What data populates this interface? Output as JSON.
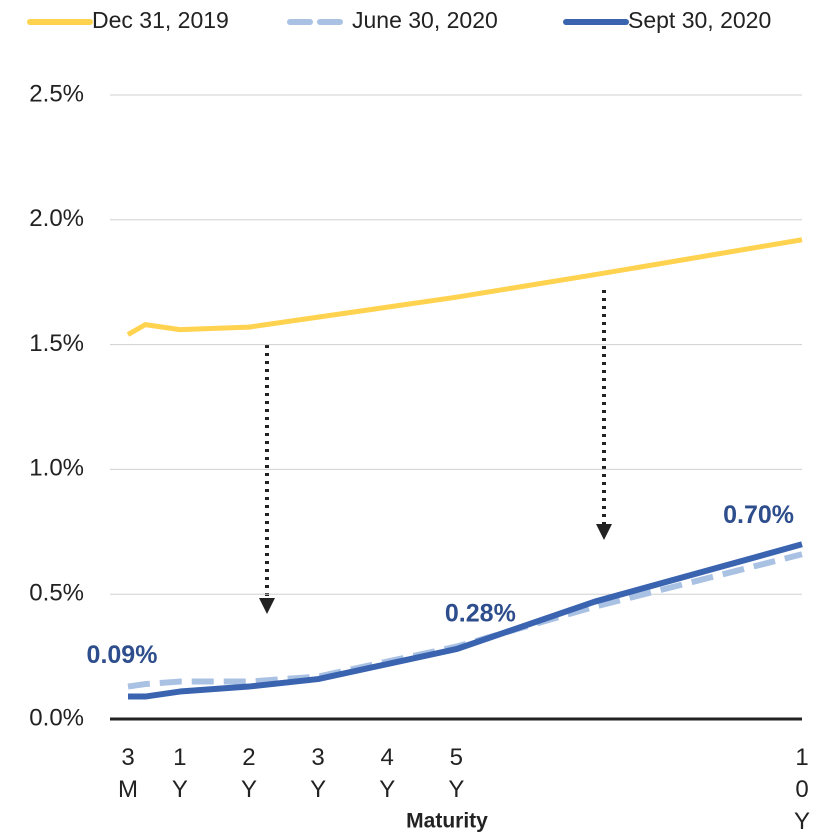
{
  "chart_data": {
    "type": "line",
    "x_label": "Maturity",
    "x": [
      0.25,
      0.5,
      1,
      2,
      3,
      5,
      7,
      10
    ],
    "series": [
      {
        "name": "Dec 31, 2019",
        "color": "#ffd24f",
        "dash": "solid",
        "values": [
          1.54,
          1.58,
          1.56,
          1.57,
          1.61,
          1.69,
          1.78,
          1.92
        ]
      },
      {
        "name": "June 30, 2020",
        "color": "#a9c1e3",
        "dash": "dashed",
        "values": [
          0.13,
          0.14,
          0.15,
          0.15,
          0.17,
          0.29,
          0.45,
          0.66
        ]
      },
      {
        "name": "Sept 30, 2020",
        "color": "#3a63b0",
        "dash": "solid",
        "values": [
          0.09,
          0.09,
          0.11,
          0.13,
          0.16,
          0.28,
          0.47,
          0.7
        ],
        "value_labels": [
          "0.09%",
          null,
          null,
          null,
          null,
          "0.28%",
          null,
          "0.70%"
        ]
      }
    ],
    "xlim": [
      0.25,
      10
    ],
    "xticks": [
      {
        "value": 0.25,
        "label": "3 M"
      },
      {
        "value": 1,
        "label": "1 Y"
      },
      {
        "value": 2,
        "label": "2 Y"
      },
      {
        "value": 3,
        "label": "3 Y"
      },
      {
        "value": 4,
        "label": "4 Y"
      },
      {
        "value": 5,
        "label": "5 Y"
      },
      {
        "value": 10,
        "label": "10 Y"
      }
    ],
    "ylim": [
      0,
      2.5
    ],
    "yticks": [
      {
        "value": 0,
        "label": "0.0%"
      },
      {
        "value": 0.5,
        "label": "0.5%"
      },
      {
        "value": 1,
        "label": "1.0%"
      },
      {
        "value": 1.5,
        "label": "1.5%"
      },
      {
        "value": 2,
        "label": "2.0%"
      },
      {
        "value": 2.5,
        "label": "2.5%"
      }
    ],
    "grid": true,
    "legend": "top"
  }
}
